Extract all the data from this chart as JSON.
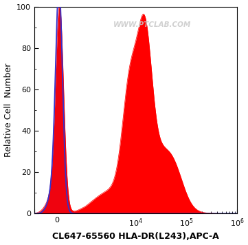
{
  "title": "",
  "xlabel": "CL647-65560 HLA-DR(L243),APC-A",
  "ylabel": "Relative Cell  Number",
  "ylim": [
    0,
    100
  ],
  "yticks": [
    0,
    20,
    40,
    60,
    80,
    100
  ],
  "watermark": "WWW.PTCLAB.COM",
  "background_color": "#ffffff",
  "plot_bg_color": "#ffffff",
  "red_color": "#ff0000",
  "blue_color": "#3333cc",
  "xlabel_fontsize": 9,
  "ylabel_fontsize": 9,
  "tick_fontsize": 8,
  "linthresh": 1000,
  "linscale": 0.5
}
